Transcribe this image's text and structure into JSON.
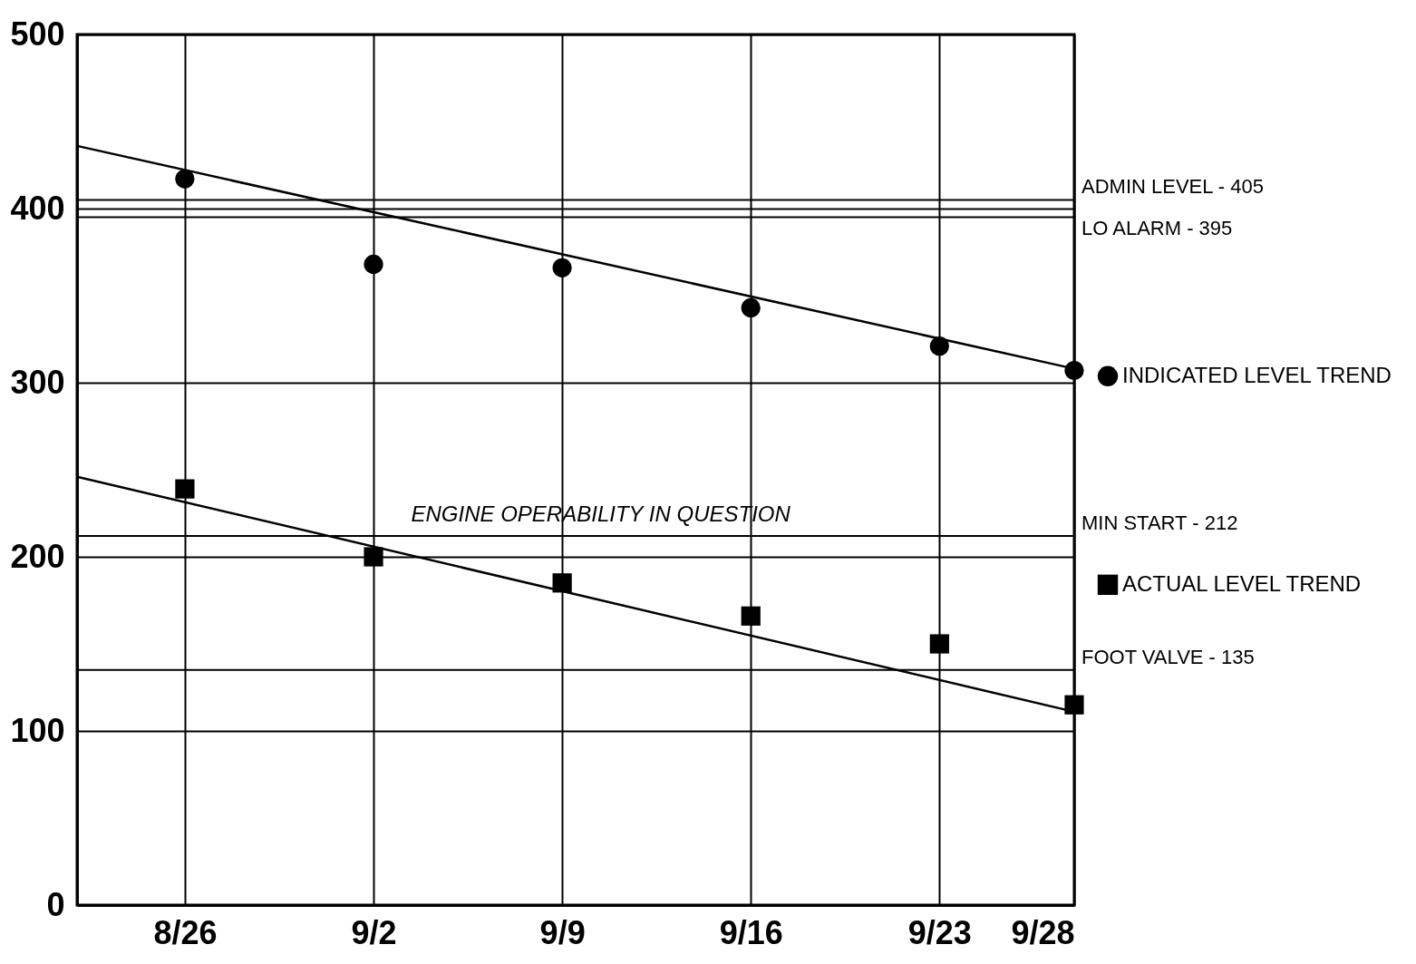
{
  "chart_data": {
    "type": "scatter",
    "x": [
      "--08-26",
      "--09-02",
      "--09-09",
      "--09-16",
      "--09-23",
      "--09-28"
    ],
    "series": [
      {
        "name": "INDICATED LEVEL TREND",
        "marker": "circle",
        "color": "#000000",
        "values": [
          417,
          368,
          366,
          343,
          321,
          307
        ]
      },
      {
        "name": "ACTUAL LEVEL TREND",
        "marker": "square",
        "color": "#000000",
        "values": [
          239,
          200,
          185,
          166,
          150,
          115
        ]
      },
      {
        "type": "line",
        "color": "#000000",
        "x": [
          "--08-22",
          "--09-28"
        ],
        "values": [
          436,
          308
        ]
      },
      {
        "type": "line",
        "color": "#000000",
        "x": [
          "--08-22",
          "--09-28"
        ],
        "values": [
          246,
          111
        ]
      }
    ],
    "xlim": [
      "--08-22",
      "--09-28"
    ],
    "xticks": [
      {
        "value": "--08-26",
        "label": "8/26"
      },
      {
        "value": "--09-02",
        "label": "9/2"
      },
      {
        "value": "--09-09",
        "label": "9/9"
      },
      {
        "value": "--09-16",
        "label": "9/16"
      },
      {
        "value": "--09-23",
        "label": "9/23"
      },
      {
        "value": "--09-28",
        "label": "9/28"
      }
    ],
    "ylim": [
      0,
      500
    ],
    "yticks": [
      0,
      100,
      200,
      300,
      400,
      500
    ],
    "ref_lines": [
      {
        "axis": "y",
        "value": 405,
        "label": "ADMIN LEVEL - 405"
      },
      {
        "axis": "y",
        "value": 395,
        "label": "LO ALARM - 395"
      },
      {
        "axis": "y",
        "value": 212,
        "label": "MIN START - 212"
      },
      {
        "axis": "y",
        "value": 135,
        "label": "FOOT VALVE - 135"
      }
    ],
    "annotations": [
      "ENGINE OPERABILITY IN QUESTION"
    ],
    "grid": true,
    "legend": "right"
  }
}
